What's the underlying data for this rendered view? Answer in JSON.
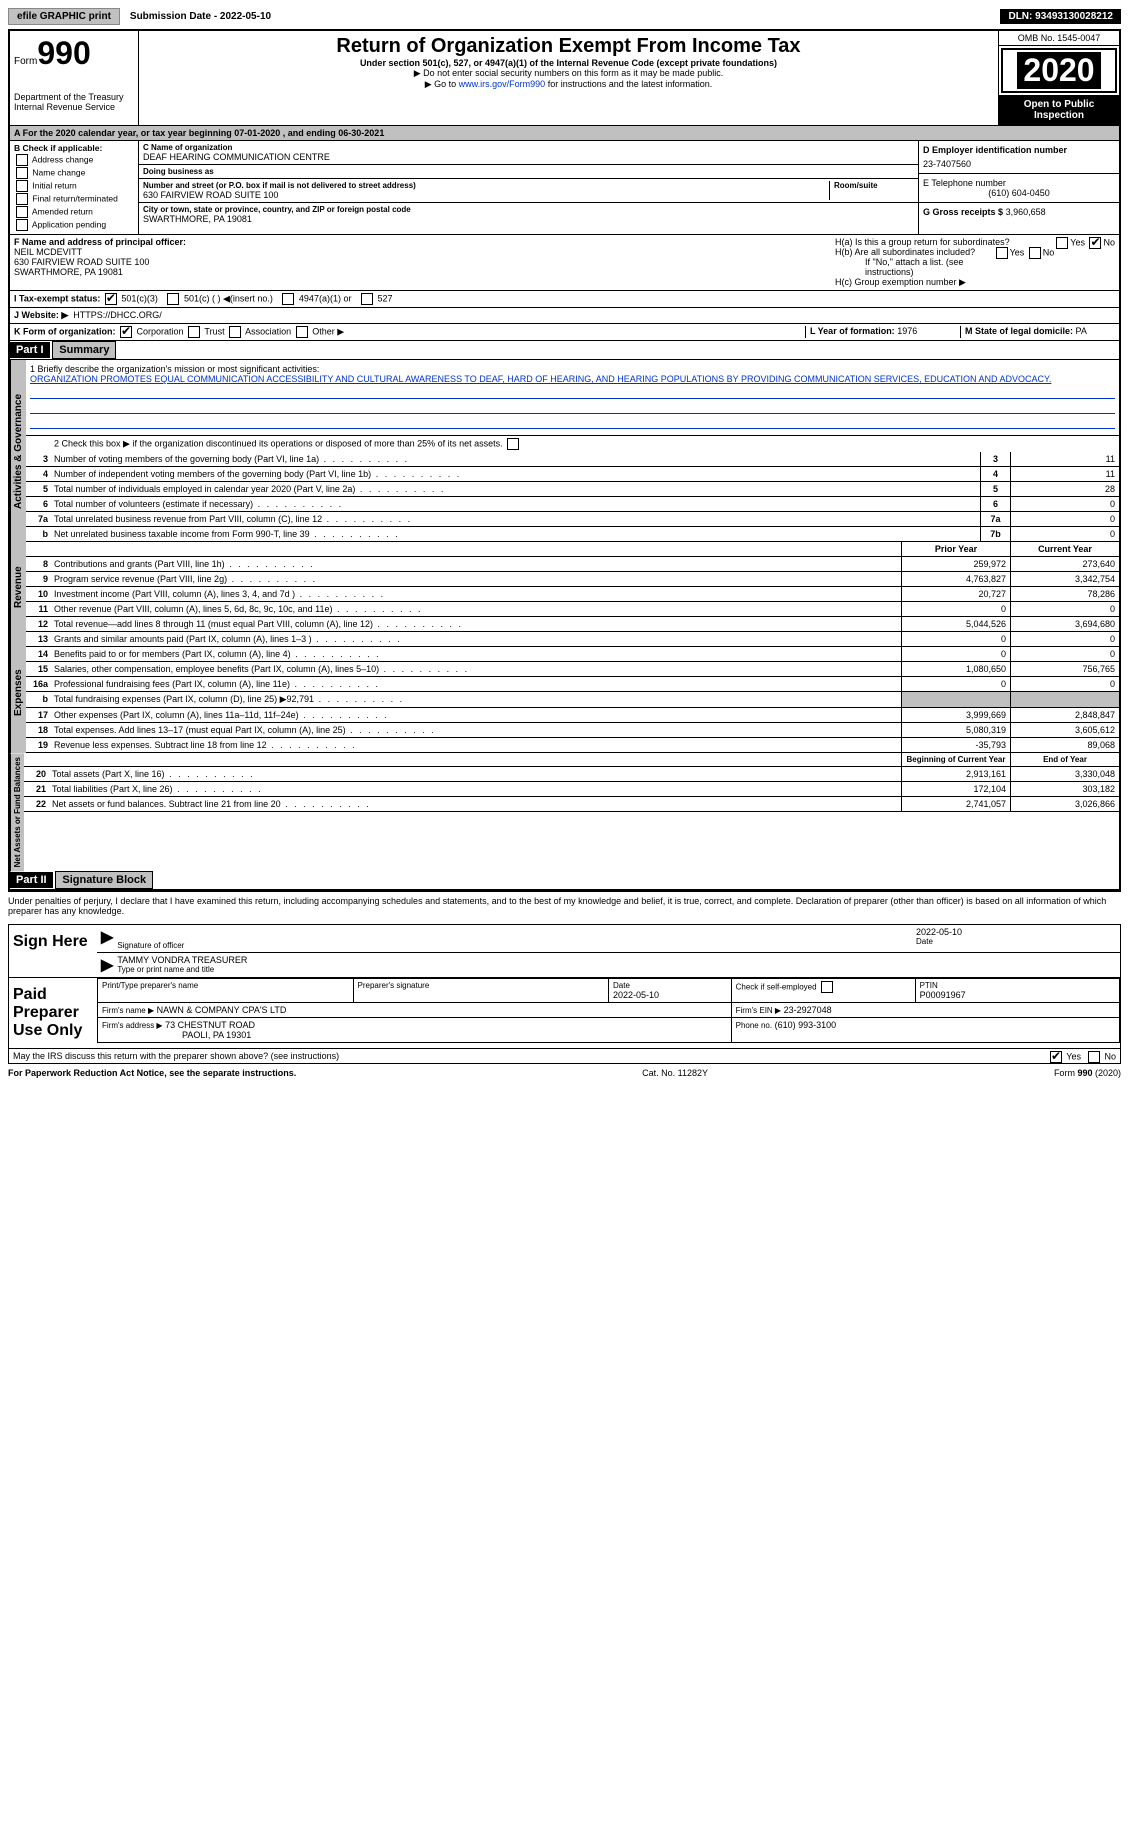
{
  "topbar": {
    "efile": "efile GRAPHIC print",
    "sub_label": "Submission Date - 2022-05-10",
    "dln": "DLN: 93493130028212"
  },
  "header": {
    "form_prefix": "Form",
    "form_num": "990",
    "dept": "Department of the Treasury\nInternal Revenue Service",
    "title": "Return of Organization Exempt From Income Tax",
    "sub1": "Under section 501(c), 527, or 4947(a)(1) of the Internal Revenue Code (except private foundations)",
    "sub2": "▶ Do not enter social security numbers on this form as it may be made public.",
    "sub3_pre": "▶ Go to ",
    "sub3_link": "www.irs.gov/Form990",
    "sub3_post": " for instructions and the latest information.",
    "omb": "OMB No. 1545-0047",
    "year": "2020",
    "open": "Open to Public Inspection"
  },
  "a_row": "A For the 2020 calendar year, or tax year beginning 07-01-2020    , and ending 06-30-2021",
  "b": {
    "title": "B Check if applicable:",
    "opts": [
      "Address change",
      "Name change",
      "Initial return",
      "Final return/terminated",
      "Amended return",
      "Application pending"
    ]
  },
  "c": {
    "name_label": "C Name of organization",
    "name": "DEAF HEARING COMMUNICATION CENTRE",
    "dba_label": "Doing business as",
    "dba": "",
    "addr_label": "Number and street (or P.O. box if mail is not delivered to street address)",
    "room_label": "Room/suite",
    "addr": "630 FAIRVIEW ROAD SUITE 100",
    "city_label": "City or town, state or province, country, and ZIP or foreign postal code",
    "city": "SWARTHMORE, PA  19081"
  },
  "d": {
    "label": "D Employer identification number",
    "val": "23-7407560"
  },
  "e": {
    "label": "E Telephone number",
    "val": "(610) 604-0450"
  },
  "g": {
    "label": "G Gross receipts $",
    "val": "3,960,658"
  },
  "f": {
    "label": "F  Name and address of principal officer:",
    "name": "NEIL MCDEVITT",
    "addr1": "630 FAIRVIEW ROAD SUITE 100",
    "addr2": "SWARTHMORE, PA  19081"
  },
  "h": {
    "a": "H(a)  Is this a group return for subordinates?",
    "b": "H(b)  Are all subordinates included?",
    "b_note": "If \"No,\" attach a list. (see instructions)",
    "c": "H(c)  Group exemption number ▶"
  },
  "i": {
    "label": "I   Tax-exempt status:",
    "opts": [
      "501(c)(3)",
      "501(c) ( )  ◀(insert no.)",
      "4947(a)(1) or",
      "527"
    ]
  },
  "j": {
    "label": "J   Website: ▶",
    "val": "HTTPS://DHCC.ORG/"
  },
  "k": {
    "label": "K Form of organization:",
    "opts": [
      "Corporation",
      "Trust",
      "Association",
      "Other ▶"
    ]
  },
  "l": {
    "label": "L Year of formation:",
    "val": "1976"
  },
  "m": {
    "label": "M State of legal domicile:",
    "val": "PA"
  },
  "part1": {
    "header": "Part I",
    "title": "Summary",
    "q1": "1  Briefly describe the organization's mission or most significant activities:",
    "mission": "ORGANIZATION PROMOTES EQUAL COMMUNICATION ACCESSIBILITY AND CULTURAL AWARENESS TO DEAF, HARD OF HEARING, AND HEARING POPULATIONS BY PROVIDING COMMUNICATION SERVICES, EDUCATION AND ADVOCACY.",
    "q2": "2  Check this box ▶        if the organization discontinued its operations or disposed of more than 25% of its net assets.",
    "tabs": {
      "gov": "Activities & Governance",
      "rev": "Revenue",
      "exp": "Expenses",
      "net": "Net Assets or Fund Balances"
    },
    "gov_rows": [
      {
        "n": "3",
        "d": "Number of voting members of the governing body (Part VI, line 1a)",
        "b": "3",
        "v": "11"
      },
      {
        "n": "4",
        "d": "Number of independent voting members of the governing body (Part VI, line 1b)",
        "b": "4",
        "v": "11"
      },
      {
        "n": "5",
        "d": "Total number of individuals employed in calendar year 2020 (Part V, line 2a)",
        "b": "5",
        "v": "28"
      },
      {
        "n": "6",
        "d": "Total number of volunteers (estimate if necessary)",
        "b": "6",
        "v": "0"
      },
      {
        "n": "7a",
        "d": "Total unrelated business revenue from Part VIII, column (C), line 12",
        "b": "7a",
        "v": "0"
      },
      {
        "n": "b",
        "d": "Net unrelated business taxable income from Form 990-T, line 39",
        "b": "7b",
        "v": "0"
      }
    ],
    "col_hdr": {
      "py": "Prior Year",
      "cy": "Current Year"
    },
    "rev_rows": [
      {
        "n": "8",
        "d": "Contributions and grants (Part VIII, line 1h)",
        "py": "259,972",
        "cy": "273,640"
      },
      {
        "n": "9",
        "d": "Program service revenue (Part VIII, line 2g)",
        "py": "4,763,827",
        "cy": "3,342,754"
      },
      {
        "n": "10",
        "d": "Investment income (Part VIII, column (A), lines 3, 4, and 7d )",
        "py": "20,727",
        "cy": "78,286"
      },
      {
        "n": "11",
        "d": "Other revenue (Part VIII, column (A), lines 5, 6d, 8c, 9c, 10c, and 11e)",
        "py": "0",
        "cy": "0"
      },
      {
        "n": "12",
        "d": "Total revenue—add lines 8 through 11 (must equal Part VIII, column (A), line 12)",
        "py": "5,044,526",
        "cy": "3,694,680"
      }
    ],
    "exp_rows": [
      {
        "n": "13",
        "d": "Grants and similar amounts paid (Part IX, column (A), lines 1–3 )",
        "py": "0",
        "cy": "0"
      },
      {
        "n": "14",
        "d": "Benefits paid to or for members (Part IX, column (A), line 4)",
        "py": "0",
        "cy": "0"
      },
      {
        "n": "15",
        "d": "Salaries, other compensation, employee benefits (Part IX, column (A), lines 5–10)",
        "py": "1,080,650",
        "cy": "756,765"
      },
      {
        "n": "16a",
        "d": "Professional fundraising fees (Part IX, column (A), line 11e)",
        "py": "0",
        "cy": "0"
      },
      {
        "n": "b",
        "d": "Total fundraising expenses (Part IX, column (D), line 25) ▶92,791",
        "py": "",
        "cy": "",
        "grey": true
      },
      {
        "n": "17",
        "d": "Other expenses (Part IX, column (A), lines 11a–11d, 11f–24e)",
        "py": "3,999,669",
        "cy": "2,848,847"
      },
      {
        "n": "18",
        "d": "Total expenses. Add lines 13–17 (must equal Part IX, column (A), line 25)",
        "py": "5,080,319",
        "cy": "3,605,612"
      },
      {
        "n": "19",
        "d": "Revenue less expenses. Subtract line 18 from line 12",
        "py": "-35,793",
        "cy": "89,068"
      }
    ],
    "col_hdr2": {
      "py": "Beginning of Current Year",
      "cy": "End of Year"
    },
    "net_rows": [
      {
        "n": "20",
        "d": "Total assets (Part X, line 16)",
        "py": "2,913,161",
        "cy": "3,330,048"
      },
      {
        "n": "21",
        "d": "Total liabilities (Part X, line 26)",
        "py": "172,104",
        "cy": "303,182"
      },
      {
        "n": "22",
        "d": "Net assets or fund balances. Subtract line 21 from line 20",
        "py": "2,741,057",
        "cy": "3,026,866"
      }
    ]
  },
  "part2": {
    "header": "Part II",
    "title": "Signature Block",
    "penalties": "Under penalties of perjury, I declare that I have examined this return, including accompanying schedules and statements, and to the best of my knowledge and belief, it is true, correct, and complete. Declaration of preparer (other than officer) is based on all information of which preparer has any knowledge.",
    "sign_here": "Sign Here",
    "sig_officer": "Signature of officer",
    "sig_date_lbl": "Date",
    "sig_date": "2022-05-10",
    "sig_name": "TAMMY VONDRA  TREASURER",
    "sig_name_lbl": "Type or print name and title",
    "paid_prep": "Paid Preparer Use Only",
    "prep": {
      "name_lbl": "Print/Type preparer's name",
      "sig_lbl": "Preparer's signature",
      "date_lbl": "Date",
      "date": "2022-05-10",
      "check_lbl": "Check         if self-employed",
      "ptin_lbl": "PTIN",
      "ptin": "P00091967",
      "firm_name_lbl": "Firm's name     ▶",
      "firm_name": "NAWN & COMPANY CPA'S LTD",
      "firm_ein_lbl": "Firm's EIN ▶",
      "firm_ein": "23-2927048",
      "firm_addr_lbl": "Firm's address ▶",
      "firm_addr1": "73 CHESTNUT ROAD",
      "firm_addr2": "PAOLI, PA  19301",
      "phone_lbl": "Phone no.",
      "phone": "(610) 993-3100"
    },
    "discuss": "May the IRS discuss this return with the preparer shown above? (see instructions)"
  },
  "footer": {
    "l": "For Paperwork Reduction Act Notice, see the separate instructions.",
    "m": "Cat. No. 11282Y",
    "r": "Form 990 (2020)"
  }
}
